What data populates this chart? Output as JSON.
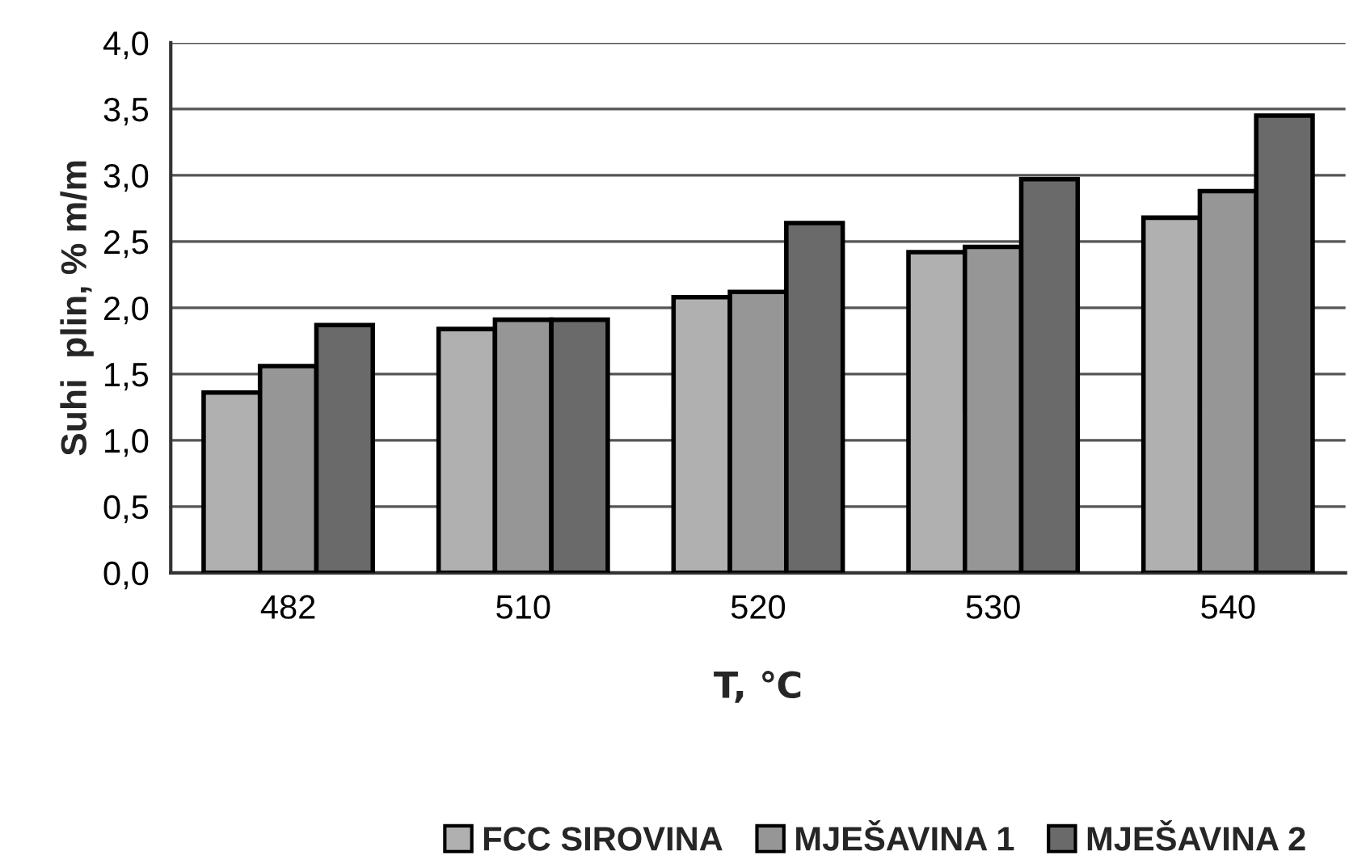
{
  "chart_data": {
    "type": "bar",
    "xlabel": "T, ℃",
    "ylabel": "Suhi  plin, % m/m",
    "categories": [
      "482",
      "510",
      "520",
      "530",
      "540"
    ],
    "series": [
      {
        "name": "FCC SIROVINA",
        "color": "#b0b0b0",
        "values": [
          1.36,
          1.84,
          2.08,
          2.42,
          2.68
        ]
      },
      {
        "name": "MJEŠAVINA 1",
        "color": "#969696",
        "values": [
          1.56,
          1.91,
          2.12,
          2.46,
          2.88
        ]
      },
      {
        "name": "MJEŠAVINA 2",
        "color": "#6a6a6a",
        "values": [
          1.87,
          1.91,
          2.64,
          2.97,
          3.45
        ]
      }
    ],
    "ylim": [
      0,
      4
    ],
    "yticks": [
      {
        "value": 0,
        "label": "0,0"
      },
      {
        "value": 0.5,
        "label": "0,5"
      },
      {
        "value": 1,
        "label": "1,0"
      },
      {
        "value": 1.5,
        "label": "1,5"
      },
      {
        "value": 2,
        "label": "2,0"
      },
      {
        "value": 2.5,
        "label": "2,5"
      },
      {
        "value": 3,
        "label": "3,0"
      },
      {
        "value": 3.5,
        "label": "3,5"
      },
      {
        "value": 4,
        "label": "4,0"
      }
    ],
    "grid": "y",
    "legend": "bottom"
  }
}
